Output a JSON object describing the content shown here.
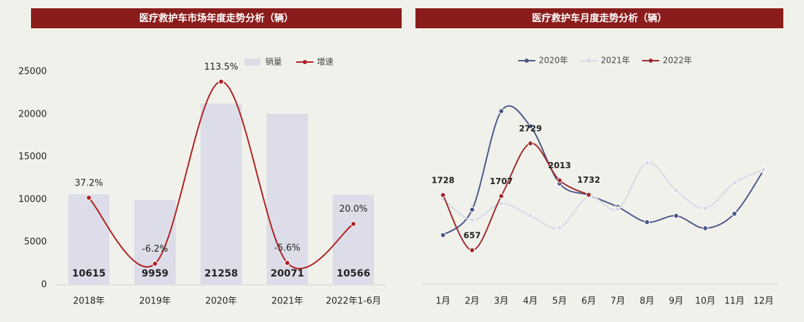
{
  "chart_data": [
    {
      "type": "bar",
      "title": "医疗救护车市场年度走势分析（辆）",
      "categories": [
        "2018年",
        "2019年",
        "2020年",
        "2021年",
        "2022年1-6月"
      ],
      "series": [
        {
          "name": "销量",
          "type": "bar",
          "color": "#dcdde8",
          "values": [
            10615,
            9959,
            21258,
            20071,
            10566
          ],
          "data_labels": true
        },
        {
          "name": "增速",
          "type": "line",
          "axis": "y2",
          "color": "#b01e1e",
          "values": [
            37.2,
            -6.2,
            113.5,
            -5.6,
            20.0
          ],
          "value_labels": [
            "37.2%",
            "-6.2%",
            "113.5%",
            "-5.6%",
            "20.0%"
          ],
          "data_labels": true
        }
      ],
      "ylim": [
        0,
        25000
      ],
      "yticks": [
        0,
        5000,
        10000,
        15000,
        20000,
        25000
      ],
      "y2lim": [
        -20,
        120
      ],
      "legend": "top"
    },
    {
      "type": "line",
      "title": "医疗救护车月度走势分析（辆）",
      "categories": [
        "1月",
        "2月",
        "3月",
        "4月",
        "5月",
        "6月",
        "7月",
        "8月",
        "9月",
        "10月",
        "11月",
        "12月"
      ],
      "series": [
        {
          "name": "2020年",
          "color": "#4a5688",
          "values": [
            949,
            1444,
            3356,
            3062,
            1952,
            1725,
            1497,
            1203,
            1324,
            1083,
            1364,
            2206
          ]
        },
        {
          "name": "2021年",
          "color": "#d6dae4",
          "values": [
            1650,
            1243,
            1564,
            1324,
            1096,
            1698,
            1457,
            2353,
            1818,
            1471,
            1965,
            2219
          ]
        },
        {
          "name": "2022年",
          "color": "#9e2a2a",
          "values": [
            1728,
            657,
            1707,
            2729,
            2013,
            1732,
            null,
            null,
            null,
            null,
            null,
            null
          ],
          "data_labels": true
        }
      ],
      "ylim": [
        0,
        4000
      ],
      "legend": "top"
    }
  ]
}
